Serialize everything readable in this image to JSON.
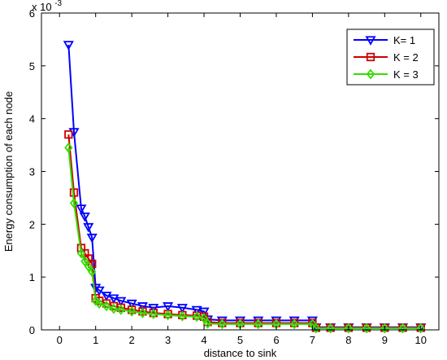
{
  "chart_data": {
    "type": "line",
    "title": "",
    "xlabel": "distance to sink",
    "ylabel": "Energy consumption of each node",
    "y_exponent_label": "x 10",
    "y_exponent_power": "-3",
    "xlim": [
      -0.5,
      10.5
    ],
    "ylim": [
      0,
      6
    ],
    "xticks": [
      0,
      1,
      2,
      3,
      4,
      5,
      6,
      7,
      8,
      9,
      10
    ],
    "yticks": [
      0,
      1,
      2,
      3,
      4,
      5,
      6
    ],
    "grid": false,
    "legend_position": "top-right",
    "series": [
      {
        "name": "K= 1",
        "color": "#0000ff",
        "marker": "triangle-down",
        "x": [
          0.25,
          0.4,
          0.6,
          0.7,
          0.8,
          0.9,
          1.0,
          1.1,
          1.3,
          1.5,
          1.7,
          2.0,
          2.3,
          2.6,
          3.0,
          3.4,
          3.8,
          4.0,
          4.1,
          4.5,
          5.0,
          5.5,
          6.0,
          6.5,
          7.0,
          7.1,
          7.5,
          8.0,
          8.5,
          9.0,
          9.5,
          10.0
        ],
        "values": [
          5.4,
          3.75,
          2.3,
          2.15,
          1.95,
          1.75,
          0.8,
          0.75,
          0.65,
          0.6,
          0.55,
          0.5,
          0.45,
          0.42,
          0.45,
          0.42,
          0.38,
          0.35,
          0.2,
          0.18,
          0.18,
          0.18,
          0.18,
          0.18,
          0.18,
          0.05,
          0.05,
          0.05,
          0.05,
          0.05,
          0.05,
          0.05
        ]
      },
      {
        "name": "K = 2",
        "color": "#cc0000",
        "marker": "square",
        "x": [
          0.25,
          0.4,
          0.6,
          0.7,
          0.8,
          0.9,
          1.0,
          1.1,
          1.3,
          1.5,
          1.7,
          2.0,
          2.3,
          2.6,
          3.0,
          3.4,
          3.8,
          4.0,
          4.1,
          4.5,
          5.0,
          5.5,
          6.0,
          6.5,
          7.0,
          7.1,
          7.5,
          8.0,
          8.5,
          9.0,
          9.5,
          10.0
        ],
        "values": [
          3.7,
          2.6,
          1.55,
          1.45,
          1.35,
          1.25,
          0.6,
          0.55,
          0.5,
          0.45,
          0.42,
          0.38,
          0.35,
          0.32,
          0.3,
          0.28,
          0.27,
          0.25,
          0.15,
          0.13,
          0.13,
          0.13,
          0.13,
          0.13,
          0.13,
          0.04,
          0.04,
          0.04,
          0.04,
          0.04,
          0.04,
          0.04
        ]
      },
      {
        "name": "K = 3",
        "color": "#33dd00",
        "marker": "diamond",
        "x": [
          0.25,
          0.4,
          0.6,
          0.7,
          0.8,
          0.9,
          1.0,
          1.1,
          1.3,
          1.5,
          1.7,
          2.0,
          2.3,
          2.6,
          3.0,
          3.4,
          3.8,
          4.0,
          4.1,
          4.5,
          5.0,
          5.5,
          6.0,
          6.5,
          7.0,
          7.1,
          7.5,
          8.0,
          8.5,
          9.0,
          9.5,
          10.0
        ],
        "values": [
          3.45,
          2.4,
          1.45,
          1.3,
          1.2,
          1.1,
          0.55,
          0.5,
          0.45,
          0.4,
          0.38,
          0.35,
          0.32,
          0.3,
          0.28,
          0.26,
          0.25,
          0.22,
          0.12,
          0.11,
          0.11,
          0.11,
          0.11,
          0.11,
          0.11,
          0.03,
          0.03,
          0.03,
          0.03,
          0.03,
          0.03,
          0.03
        ]
      }
    ]
  }
}
